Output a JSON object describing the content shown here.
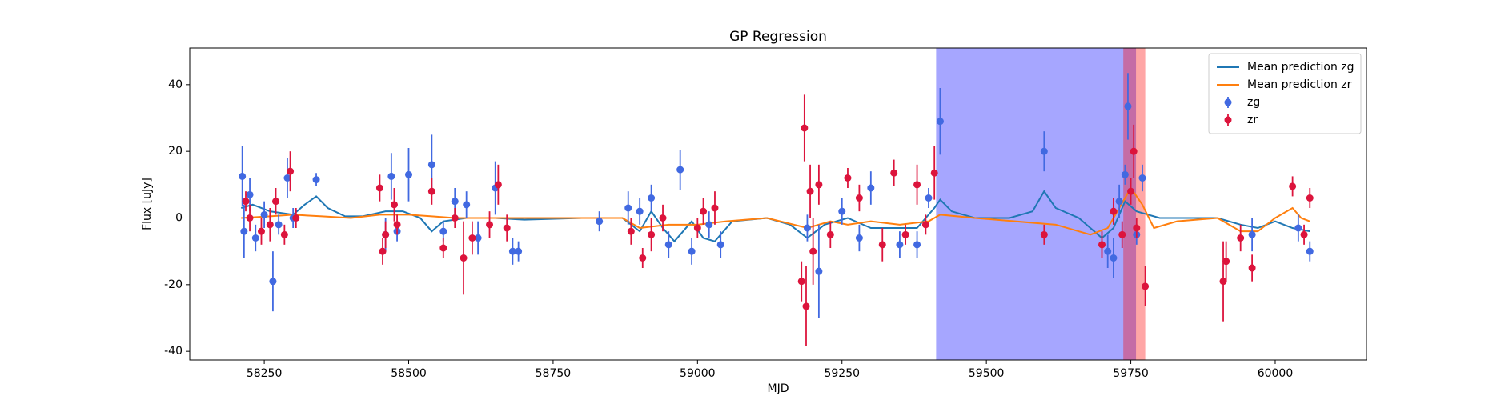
{
  "chart_data": {
    "type": "errorbar",
    "title": "GP Regression",
    "x_label": "MJD",
    "y_label": "Flux [uJy]",
    "xlim": [
      58121,
      60158
    ],
    "ylim": [
      -42.6,
      51
    ],
    "xticks": [
      58250,
      58500,
      58750,
      59000,
      59250,
      59500,
      59750,
      60000
    ],
    "yticks": [
      -40,
      -20,
      0,
      20,
      40
    ],
    "grid": false,
    "legend": "upper right",
    "spans": [
      {
        "xmin": 59413,
        "xmax": 59759,
        "color": "#0000ff",
        "alpha": 0.35
      },
      {
        "xmin": 59737,
        "xmax": 59775,
        "color": "#ff0000",
        "alpha": 0.35
      }
    ],
    "series": [
      {
        "name": "Mean prediction zg",
        "color": "#1f77b4",
        "kind": "line",
        "x": [
          58210,
          58230,
          58260,
          58300,
          58320,
          58340,
          58360,
          58390,
          58420,
          58460,
          58490,
          58520,
          58540,
          58560,
          58600,
          58650,
          58700,
          58800,
          58870,
          58900,
          58920,
          58940,
          58960,
          58990,
          59010,
          59030,
          59060,
          59120,
          59160,
          59190,
          59220,
          59260,
          59300,
          59340,
          59380,
          59410,
          59420,
          59440,
          59480,
          59540,
          59580,
          59600,
          59620,
          59660,
          59700,
          59720,
          59740,
          59760,
          59800,
          59900,
          59940,
          59970,
          60000,
          60030,
          60060
        ],
        "values": [
          3,
          4,
          2,
          1,
          4,
          6.5,
          3,
          0.5,
          0.5,
          2,
          2,
          0,
          -4,
          -1,
          0,
          0,
          -0.5,
          0,
          0,
          -4,
          2,
          -3,
          -7,
          -1,
          -6,
          -7,
          -1,
          0,
          -2,
          -6,
          -2,
          0,
          -3,
          -3,
          -3,
          3,
          5.5,
          2,
          0,
          0,
          2,
          8,
          3,
          0,
          -6,
          -3,
          5,
          2,
          0,
          0,
          -2,
          -3,
          -1,
          -3,
          -4
        ]
      },
      {
        "name": "Mean prediction zr",
        "color": "#ff7f0e",
        "kind": "line",
        "x": [
          58210,
          58260,
          58300,
          58350,
          58400,
          58450,
          58500,
          58540,
          58580,
          58650,
          58700,
          58800,
          58870,
          58900,
          58950,
          59000,
          59050,
          59120,
          59190,
          59230,
          59260,
          59300,
          59350,
          59400,
          59420,
          59480,
          59550,
          59620,
          59680,
          59710,
          59730,
          59750,
          59770,
          59790,
          59830,
          59900,
          59940,
          59970,
          60000,
          60030,
          60045,
          60060
        ],
        "values": [
          0,
          0.5,
          1,
          0.5,
          0,
          1,
          1,
          0.5,
          0,
          0,
          0,
          0,
          0,
          -3,
          -2,
          -2,
          -1,
          0,
          -3,
          -1,
          -2,
          -1,
          -2,
          -1,
          1,
          0,
          -1,
          -2,
          -5,
          -3,
          3,
          9,
          4,
          -3,
          -1,
          0,
          -4,
          -4,
          0,
          3,
          0,
          -1
        ]
      },
      {
        "name": "zg",
        "color": "#4169e1",
        "kind": "errorbar",
        "x": [
          58212,
          58215,
          58225,
          58235,
          58250,
          58265,
          58275,
          58290,
          58300,
          58340,
          58460,
          58470,
          58480,
          58500,
          58540,
          58560,
          58580,
          58600,
          58620,
          58650,
          58680,
          58690,
          58830,
          58880,
          58900,
          58920,
          58950,
          58970,
          58990,
          59020,
          59040,
          59190,
          59210,
          59250,
          59280,
          59300,
          59350,
          59380,
          59400,
          59420,
          59600,
          59710,
          59720,
          59730,
          59740,
          59745,
          59760,
          59770,
          59960,
          60040,
          60060
        ],
        "values": [
          12.5,
          -4,
          7,
          -6,
          1,
          -19,
          -2,
          12,
          0,
          11.5,
          -5,
          12.5,
          -4,
          13,
          16,
          -4,
          5,
          4,
          -6,
          9,
          -10,
          -10,
          -1,
          3,
          2,
          6,
          -8,
          14.5,
          -10,
          -2,
          -8,
          -3,
          -16,
          2,
          -6,
          9,
          -8,
          -8,
          6,
          29,
          20,
          -10,
          -12,
          5,
          13,
          33.5,
          -5,
          12,
          -5,
          -3,
          -10
        ],
        "errors": [
          9,
          8,
          5,
          4,
          4,
          9,
          3,
          6,
          3,
          2,
          5,
          7,
          3,
          8,
          9,
          3,
          4,
          4,
          5,
          8,
          4,
          3,
          3,
          5,
          4,
          4,
          4,
          6,
          4,
          4,
          4,
          4,
          14,
          4,
          4,
          5,
          4,
          4,
          3,
          10,
          6,
          5,
          6,
          5,
          3,
          10,
          3,
          4,
          5,
          4,
          3
        ]
      },
      {
        "name": "zr",
        "color": "#dc143c",
        "kind": "errorbar",
        "x": [
          58218,
          58225,
          58245,
          58260,
          58270,
          58285,
          58295,
          58305,
          58450,
          58455,
          58460,
          58475,
          58480,
          58540,
          58560,
          58580,
          58595,
          58610,
          58640,
          58655,
          58670,
          58885,
          58905,
          58920,
          58940,
          59000,
          59010,
          59030,
          59180,
          59185,
          59188,
          59195,
          59200,
          59210,
          59230,
          59260,
          59280,
          59320,
          59340,
          59360,
          59380,
          59395,
          59410,
          59600,
          59700,
          59720,
          59735,
          59750,
          59755,
          59760,
          59775,
          59910,
          59915,
          59940,
          59960,
          60030,
          60050,
          60060
        ],
        "values": [
          5,
          0,
          -4,
          -2,
          5,
          -5,
          14,
          0,
          9,
          -10,
          -5,
          4,
          -2,
          8,
          -9,
          0,
          -12,
          -6,
          -2,
          10,
          -3,
          -4,
          -12,
          -5,
          0,
          -3,
          2,
          3,
          -19,
          27,
          -26.5,
          8,
          -10,
          10,
          -5,
          12,
          6,
          -8,
          13.5,
          -5,
          10,
          -2,
          13.5,
          -5,
          -8,
          2,
          -5,
          8,
          20,
          -3,
          -20.5,
          -19,
          -13,
          -6,
          -15,
          9.5,
          -5,
          6
        ],
        "errors": [
          3,
          4,
          4,
          5,
          4,
          3,
          6,
          3,
          4,
          4,
          4,
          5,
          3,
          4,
          3,
          3,
          11,
          5,
          4,
          6,
          4,
          4,
          3,
          5,
          4,
          3,
          4,
          5,
          6,
          10,
          12,
          8,
          10,
          6,
          4,
          3,
          4,
          5,
          4,
          3,
          6,
          3,
          8,
          3,
          4,
          4,
          4,
          4,
          8,
          3,
          6,
          12,
          6,
          4,
          4,
          3,
          3,
          3
        ]
      }
    ]
  }
}
